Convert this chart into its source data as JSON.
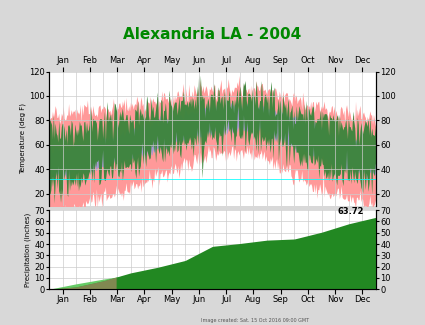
{
  "title": "Alexandria LA - 2004",
  "title_color": "#008800",
  "title_fontsize": 11,
  "temp_ylim": [
    10,
    120
  ],
  "temp_yticks": [
    20,
    40,
    60,
    80,
    100,
    120
  ],
  "precip_ylim": [
    0,
    70
  ],
  "precip_yticks": [
    0,
    10,
    20,
    30,
    40,
    50,
    60,
    70
  ],
  "months": [
    "Jan",
    "Feb",
    "Mar",
    "Apr",
    "May",
    "Jun",
    "Jul",
    "Aug",
    "Sep",
    "Oct",
    "Nov",
    "Dec"
  ],
  "background_color": "#d8d8d8",
  "panel_bg": "#ffffff",
  "grid_color": "#cccccc",
  "temp_record_color": "#ff9999",
  "temp_normal_color": "#9999dd",
  "temp_actual_color": "#2d6e2d",
  "temp_actual_light": "#55aa55",
  "precip_normal_color": "#66cc66",
  "precip_actual_color": "#228822",
  "precip_overlap_color": "#aa8866",
  "cyan_line_val": 32,
  "annotation_text": "63.72",
  "ylabel_temp": "Temperature (deg F)",
  "ylabel_precip": "Precipitation (inches)",
  "normal_high": [
    57,
    61,
    68,
    76,
    82,
    89,
    92,
    92,
    87,
    78,
    67,
    59
  ],
  "record_high": [
    84,
    88,
    90,
    95,
    98,
    103,
    106,
    106,
    102,
    94,
    87,
    83
  ],
  "normal_low": [
    36,
    39,
    46,
    53,
    61,
    68,
    72,
    72,
    65,
    53,
    44,
    38
  ],
  "record_low": [
    4,
    14,
    20,
    30,
    38,
    47,
    55,
    54,
    42,
    28,
    19,
    11
  ],
  "actual_high": [
    72,
    78,
    79,
    84,
    90,
    97,
    99,
    100,
    93,
    85,
    76,
    72
  ],
  "actual_low": [
    27,
    35,
    40,
    48,
    58,
    65,
    70,
    68,
    60,
    46,
    36,
    32
  ],
  "cum_normal_precip": [
    0,
    4.8,
    9.0,
    12.8,
    17.3,
    22.8,
    28.0,
    33.5,
    38.0,
    42.5,
    47.2,
    52.0,
    56.0
  ],
  "cum_actual_precip": [
    0,
    2.1,
    7.5,
    14.5,
    19.5,
    25.5,
    38.0,
    40.5,
    43.5,
    44.5,
    50.5,
    58.0,
    63.72
  ]
}
